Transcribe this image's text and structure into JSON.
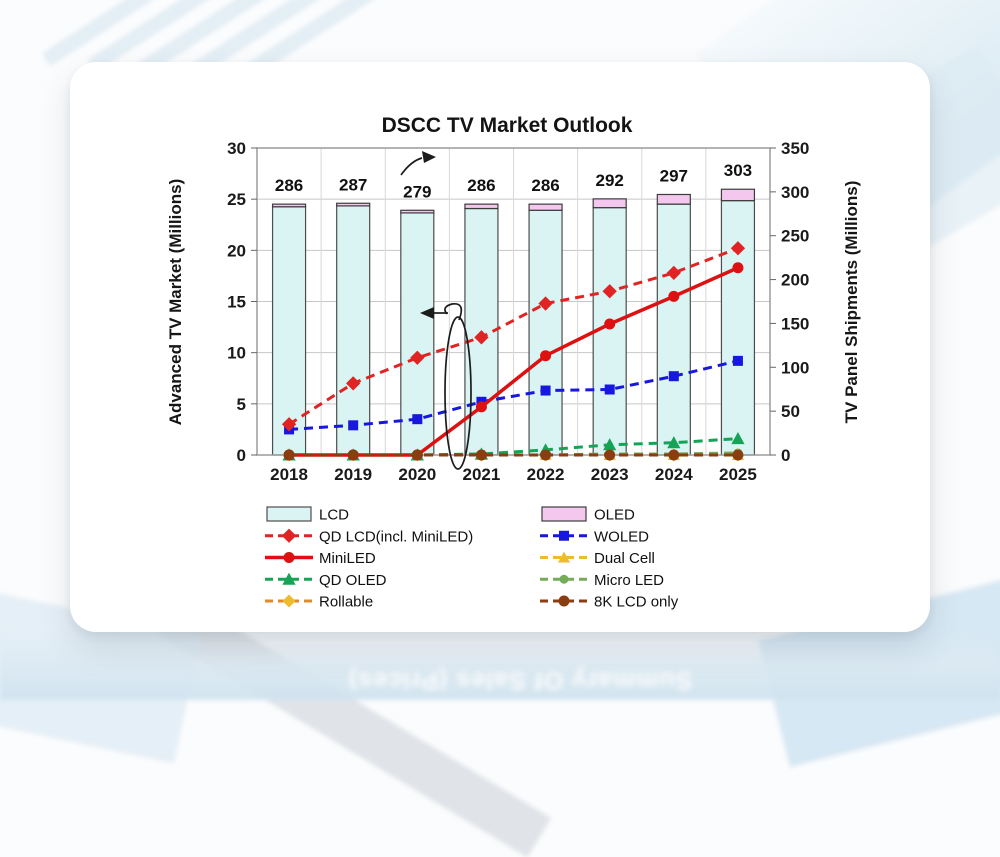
{
  "background": {
    "watermark_text": "Summary Of Sales (Prices)"
  },
  "chart_data": {
    "type": "combo_bar_line",
    "title": "DSCC TV Market Outlook",
    "categories": [
      "2018",
      "2019",
      "2020",
      "2021",
      "2022",
      "2023",
      "2024",
      "2025"
    ],
    "left_axis": {
      "label": "Advanced TV Market (Millions)",
      "min": 0,
      "max": 30,
      "step": 5,
      "ticks": [
        0,
        5,
        10,
        15,
        20,
        25,
        30
      ]
    },
    "right_axis": {
      "label": "TV Panel Shipments (Millions)",
      "min": 0,
      "max": 350,
      "step": 50,
      "ticks": [
        0,
        50,
        100,
        150,
        200,
        250,
        300,
        350
      ]
    },
    "grid": {
      "horizontal": true,
      "vertical": true
    },
    "bar_total_labels": [
      "286",
      "287",
      "279",
      "286",
      "286",
      "292",
      "297",
      "303"
    ],
    "bar_series": [
      {
        "name": "LCD",
        "axis": "right",
        "values": [
          283,
          284,
          276,
          281,
          279,
          282,
          286,
          290
        ],
        "fill": "#d9f4f3",
        "border": "#4d4d4d"
      },
      {
        "name": "OLED",
        "axis": "right",
        "values": [
          3,
          3,
          3,
          5,
          7,
          10,
          11,
          13
        ],
        "fill": "#f3c7ee",
        "border": "#3c3c3c"
      }
    ],
    "line_series": [
      {
        "name": "QD LCD(incl. MiniLED)",
        "axis": "left",
        "values": [
          3,
          7,
          9.5,
          11.5,
          14.8,
          16,
          17.8,
          20.2
        ],
        "color": "#e02424",
        "dash": "9 6",
        "marker": "diamond",
        "marker_size": 11,
        "z": 6
      },
      {
        "name": "WOLED",
        "axis": "left",
        "values": [
          2.5,
          2.9,
          3.5,
          5.2,
          6.3,
          6.4,
          7.7,
          9.2
        ],
        "color": "#1717dd",
        "dash": "9 6",
        "marker": "square",
        "marker_size": 10,
        "z": 5
      },
      {
        "name": "MiniLED",
        "axis": "left",
        "values": [
          0,
          0,
          0,
          4.7,
          9.7,
          12.8,
          15.5,
          18.3
        ],
        "color": "#dd1111",
        "dash": null,
        "marker": "circle",
        "marker_size": 11,
        "width": 3.5,
        "z": 7
      },
      {
        "name": "Dual Cell",
        "axis": "left",
        "values": [
          0,
          0,
          0,
          0,
          0,
          0,
          0,
          0
        ],
        "color": "#eebb2e",
        "dash": "9 6",
        "marker": "triangle",
        "marker_size": 10,
        "z": 1
      },
      {
        "name": "QD OLED",
        "axis": "left",
        "values": [
          0,
          0,
          0,
          0.1,
          0.5,
          1,
          1.2,
          1.6
        ],
        "color": "#16a356",
        "dash": "9 6",
        "marker": "triangle",
        "marker_size": 11,
        "z": 4
      },
      {
        "name": "Micro LED",
        "axis": "left",
        "values": [
          0,
          0,
          0,
          0,
          0,
          0.1,
          0.1,
          0.2
        ],
        "color": "#76ac58",
        "dash": "9 6",
        "marker": "circle",
        "marker_size": 9,
        "z": 2
      },
      {
        "name": "Rollable",
        "axis": "left",
        "values": [
          0,
          0,
          0,
          0,
          0,
          0,
          0,
          0
        ],
        "color": "#e08a2e",
        "dash": "9 6",
        "marker": "diamond",
        "marker_size": 10,
        "marker_color": "#eebb2e",
        "z": 3
      },
      {
        "name": "8K LCD only",
        "axis": "left",
        "values": [
          0,
          0,
          0,
          0,
          0,
          0,
          0,
          0
        ],
        "color": "#8a3d10",
        "dash": "9 6",
        "marker": "circle",
        "marker_size": 11,
        "z": 8
      }
    ],
    "legend": {
      "position": "bottom",
      "rows": [
        [
          "LCD",
          "OLED"
        ],
        [
          "QD LCD(incl. MiniLED)",
          "WOLED"
        ],
        [
          "MiniLED",
          "Dual Cell"
        ],
        [
          "QD OLED",
          "Micro LED"
        ],
        [
          "Rollable",
          "8K LCD only"
        ]
      ]
    },
    "annotations": [
      {
        "id": "bars-right-axis-arrow",
        "desc": "small arrow above the 2020 total label pointing right toward the right axis"
      },
      {
        "id": "lines-left-axis-arrow",
        "desc": "tall ellipse circling the lines between 2020 and 2021 with an arrow pointing left toward the left axis"
      }
    ]
  }
}
